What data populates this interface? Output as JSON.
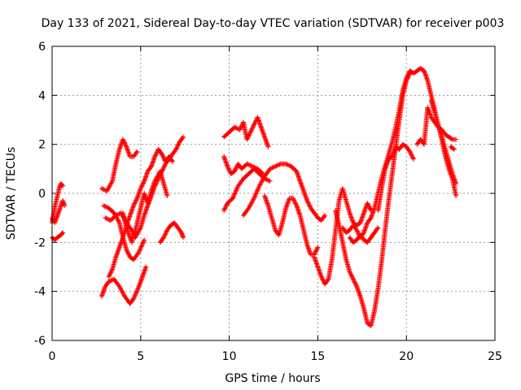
{
  "chart_data": {
    "type": "scatter",
    "title": "Day 133 of 2021, Sidereal Day-to-day VTEC variation (SDTVAR) for receiver p003",
    "xlabel": "GPS time / hours",
    "ylabel": "SDTVAR / TECUs",
    "xlim": [
      0,
      25
    ],
    "ylim": [
      -6,
      6
    ],
    "xticks": [
      0,
      5,
      10,
      15,
      20,
      25
    ],
    "yticks": [
      -6,
      -4,
      -2,
      0,
      2,
      4,
      6
    ],
    "grid": true,
    "marker": "+",
    "marker_color": "#ff0000",
    "series": [
      {
        "name": "s1",
        "points": [
          [
            0.0,
            -1.2
          ],
          [
            0.1,
            -0.8
          ],
          [
            0.2,
            -0.4
          ],
          [
            0.3,
            -0.1
          ],
          [
            0.4,
            0.2
          ],
          [
            0.5,
            0.4
          ],
          [
            0.6,
            0.3
          ]
        ]
      },
      {
        "name": "s2",
        "points": [
          [
            0.0,
            -1.0
          ],
          [
            0.15,
            -1.2
          ],
          [
            0.3,
            -0.9
          ],
          [
            0.45,
            -0.6
          ],
          [
            0.6,
            -0.3
          ],
          [
            0.7,
            -0.5
          ]
        ]
      },
      {
        "name": "s3",
        "points": [
          [
            0.0,
            -1.8
          ],
          [
            0.15,
            -1.9
          ],
          [
            0.3,
            -1.8
          ],
          [
            0.5,
            -1.7
          ],
          [
            0.6,
            -1.6
          ]
        ]
      },
      {
        "name": "s4",
        "points": [
          [
            2.8,
            -4.2
          ],
          [
            3.0,
            -3.8
          ],
          [
            3.2,
            -3.6
          ],
          [
            3.5,
            -3.5
          ],
          [
            3.8,
            -3.8
          ],
          [
            4.1,
            -4.2
          ],
          [
            4.4,
            -4.5
          ],
          [
            4.6,
            -4.3
          ],
          [
            4.9,
            -3.8
          ],
          [
            5.1,
            -3.4
          ],
          [
            5.3,
            -3.0
          ]
        ]
      },
      {
        "name": "s5",
        "points": [
          [
            2.8,
            0.2
          ],
          [
            3.1,
            0.1
          ],
          [
            3.4,
            0.5
          ],
          [
            3.6,
            1.2
          ],
          [
            3.8,
            1.8
          ],
          [
            4.0,
            2.2
          ],
          [
            4.2,
            1.9
          ],
          [
            4.4,
            1.5
          ],
          [
            4.6,
            1.5
          ],
          [
            4.8,
            1.7
          ]
        ]
      },
      {
        "name": "s6",
        "points": [
          [
            2.9,
            -0.5
          ],
          [
            3.2,
            -0.6
          ],
          [
            3.5,
            -0.8
          ],
          [
            3.8,
            -1.2
          ],
          [
            4.0,
            -1.8
          ],
          [
            4.2,
            -2.3
          ],
          [
            4.4,
            -2.6
          ],
          [
            4.6,
            -2.7
          ],
          [
            4.9,
            -2.4
          ],
          [
            5.2,
            -1.9
          ]
        ]
      },
      {
        "name": "s7",
        "points": [
          [
            3.0,
            -1.0
          ],
          [
            3.3,
            -1.1
          ],
          [
            3.6,
            -0.9
          ],
          [
            3.9,
            -0.8
          ],
          [
            4.2,
            -1.2
          ],
          [
            4.5,
            -1.5
          ],
          [
            4.7,
            -1.8
          ],
          [
            5.0,
            -1.4
          ],
          [
            5.2,
            -0.9
          ],
          [
            5.4,
            -0.5
          ],
          [
            5.6,
            -0.1
          ],
          [
            5.8,
            0.3
          ],
          [
            6.0,
            0.6
          ],
          [
            6.2,
            0.9
          ],
          [
            6.4,
            1.2
          ],
          [
            6.6,
            1.4
          ],
          [
            6.8,
            1.6
          ],
          [
            7.0,
            1.8
          ],
          [
            7.2,
            2.1
          ],
          [
            7.4,
            2.3
          ]
        ]
      },
      {
        "name": "s8",
        "points": [
          [
            3.2,
            -3.4
          ],
          [
            3.4,
            -3.1
          ],
          [
            3.6,
            -2.6
          ],
          [
            3.8,
            -2.2
          ],
          [
            4.0,
            -1.8
          ],
          [
            4.2,
            -1.3
          ],
          [
            4.4,
            -0.9
          ],
          [
            4.6,
            -0.5
          ],
          [
            4.8,
            -0.2
          ],
          [
            5.0,
            0.2
          ],
          [
            5.2,
            0.5
          ],
          [
            5.4,
            0.9
          ],
          [
            5.6,
            1.1
          ],
          [
            5.8,
            1.5
          ],
          [
            6.0,
            1.8
          ],
          [
            6.2,
            1.6
          ],
          [
            6.4,
            1.3
          ],
          [
            6.6,
            1.5
          ],
          [
            6.8,
            1.3
          ]
        ]
      },
      {
        "name": "s9",
        "points": [
          [
            4.0,
            -0.8
          ],
          [
            4.2,
            -1.4
          ],
          [
            4.5,
            -2.0
          ],
          [
            4.7,
            -1.5
          ],
          [
            5.0,
            -0.6
          ],
          [
            5.2,
            0.0
          ],
          [
            5.4,
            -0.4
          ],
          [
            5.6,
            0.1
          ],
          [
            5.8,
            0.5
          ],
          [
            6.1,
            0.9
          ],
          [
            6.3,
            0.4
          ],
          [
            6.5,
            -0.1
          ]
        ]
      },
      {
        "name": "s10",
        "points": [
          [
            6.1,
            -2.0
          ],
          [
            6.3,
            -1.8
          ],
          [
            6.5,
            -1.5
          ],
          [
            6.7,
            -1.3
          ],
          [
            6.9,
            -1.2
          ],
          [
            7.1,
            -1.4
          ],
          [
            7.3,
            -1.6
          ],
          [
            7.4,
            -1.8
          ]
        ]
      },
      {
        "name": "s11",
        "points": [
          [
            9.7,
            -0.7
          ],
          [
            9.9,
            -0.4
          ],
          [
            10.2,
            -0.2
          ],
          [
            10.5,
            0.3
          ],
          [
            10.8,
            0.6
          ],
          [
            11.1,
            0.8
          ],
          [
            11.4,
            1.0
          ],
          [
            11.7,
            0.8
          ],
          [
            12.0,
            0.6
          ],
          [
            12.3,
            0.5
          ]
        ]
      },
      {
        "name": "s12",
        "points": [
          [
            9.7,
            2.3
          ],
          [
            10.0,
            2.5
          ],
          [
            10.3,
            2.7
          ],
          [
            10.6,
            2.6
          ],
          [
            10.8,
            2.9
          ],
          [
            11.0,
            2.2
          ],
          [
            11.2,
            2.5
          ],
          [
            11.4,
            2.8
          ],
          [
            11.6,
            3.1
          ],
          [
            11.8,
            2.7
          ],
          [
            12.0,
            2.3
          ],
          [
            12.2,
            1.9
          ]
        ]
      },
      {
        "name": "s13",
        "points": [
          [
            9.7,
            1.5
          ],
          [
            9.9,
            1.1
          ],
          [
            10.1,
            0.8
          ],
          [
            10.3,
            0.9
          ],
          [
            10.5,
            1.2
          ],
          [
            10.7,
            1.0
          ],
          [
            11.0,
            1.2
          ],
          [
            11.3,
            1.1
          ],
          [
            11.6,
            1.0
          ],
          [
            11.9,
            0.8
          ]
        ]
      },
      {
        "name": "s14",
        "points": [
          [
            10.8,
            -0.9
          ],
          [
            11.1,
            -0.6
          ],
          [
            11.4,
            -0.2
          ],
          [
            11.7,
            0.3
          ],
          [
            12.0,
            0.7
          ],
          [
            12.3,
            1.0
          ],
          [
            12.6,
            1.1
          ],
          [
            12.9,
            1.2
          ],
          [
            13.2,
            1.2
          ],
          [
            13.5,
            1.1
          ],
          [
            13.8,
            0.9
          ],
          [
            14.0,
            0.5
          ],
          [
            14.2,
            0.1
          ],
          [
            14.4,
            -0.3
          ],
          [
            14.6,
            -0.6
          ],
          [
            14.8,
            -0.8
          ],
          [
            15.0,
            -1.0
          ],
          [
            15.2,
            -1.1
          ],
          [
            15.4,
            -0.9
          ]
        ]
      },
      {
        "name": "s15",
        "points": [
          [
            12.0,
            -0.1
          ],
          [
            12.2,
            -0.5
          ],
          [
            12.4,
            -1.0
          ],
          [
            12.6,
            -1.5
          ],
          [
            12.8,
            -1.7
          ],
          [
            13.0,
            -1.2
          ],
          [
            13.2,
            -0.6
          ],
          [
            13.4,
            -0.2
          ],
          [
            13.6,
            -0.2
          ],
          [
            13.8,
            -0.5
          ],
          [
            14.0,
            -0.9
          ],
          [
            14.2,
            -1.5
          ],
          [
            14.4,
            -2.1
          ],
          [
            14.6,
            -2.5
          ],
          [
            14.8,
            -2.5
          ],
          [
            15.0,
            -2.2
          ]
        ]
      },
      {
        "name": "s16",
        "points": [
          [
            14.8,
            -2.6
          ],
          [
            15.0,
            -3.0
          ],
          [
            15.2,
            -3.4
          ],
          [
            15.4,
            -3.7
          ],
          [
            15.6,
            -3.5
          ],
          [
            15.8,
            -2.7
          ],
          [
            16.0,
            -1.5
          ],
          [
            16.2,
            -0.3
          ],
          [
            16.4,
            0.2
          ],
          [
            16.6,
            -0.3
          ],
          [
            16.8,
            -0.8
          ],
          [
            17.0,
            -1.2
          ],
          [
            17.2,
            -1.3
          ],
          [
            17.4,
            -1.2
          ],
          [
            17.6,
            -0.8
          ],
          [
            17.8,
            -0.4
          ],
          [
            18.0,
            -0.7
          ]
        ]
      },
      {
        "name": "s17",
        "points": [
          [
            16.0,
            -0.7
          ],
          [
            16.2,
            -1.3
          ],
          [
            16.4,
            -2.0
          ],
          [
            16.6,
            -2.7
          ],
          [
            16.8,
            -3.2
          ],
          [
            17.0,
            -3.5
          ],
          [
            17.2,
            -3.8
          ],
          [
            17.4,
            -4.2
          ],
          [
            17.6,
            -4.7
          ],
          [
            17.8,
            -5.3
          ],
          [
            18.0,
            -5.4
          ],
          [
            18.2,
            -4.8
          ],
          [
            18.4,
            -3.9
          ],
          [
            18.6,
            -2.8
          ],
          [
            18.8,
            -1.5
          ],
          [
            19.0,
            -0.3
          ],
          [
            19.2,
            0.8
          ],
          [
            19.4,
            1.9
          ],
          [
            19.6,
            3.0
          ],
          [
            19.8,
            4.0
          ],
          [
            20.0,
            4.6
          ],
          [
            20.2,
            4.9
          ]
        ]
      },
      {
        "name": "s18",
        "points": [
          [
            16.4,
            -1.4
          ],
          [
            16.6,
            -1.6
          ],
          [
            16.8,
            -1.5
          ],
          [
            17.0,
            -1.3
          ],
          [
            17.2,
            -1.5
          ],
          [
            17.4,
            -1.8
          ],
          [
            17.6,
            -1.6
          ],
          [
            17.8,
            -1.2
          ],
          [
            18.0,
            -1.0
          ],
          [
            18.2,
            -0.6
          ],
          [
            18.4,
            0.0
          ],
          [
            18.6,
            0.6
          ],
          [
            18.8,
            1.1
          ],
          [
            19.0,
            1.6
          ],
          [
            19.2,
            2.1
          ],
          [
            19.4,
            2.7
          ],
          [
            19.6,
            3.4
          ],
          [
            19.8,
            4.2
          ],
          [
            20.0,
            4.7
          ],
          [
            20.2,
            5.0
          ],
          [
            20.4,
            4.9
          ],
          [
            20.6,
            5.0
          ],
          [
            20.8,
            5.1
          ],
          [
            21.0,
            5.0
          ],
          [
            21.2,
            4.6
          ],
          [
            21.4,
            4.0
          ],
          [
            21.6,
            3.4
          ],
          [
            21.8,
            2.8
          ],
          [
            22.0,
            2.2
          ],
          [
            22.2,
            1.5
          ],
          [
            22.4,
            1.0
          ],
          [
            22.6,
            0.6
          ],
          [
            22.8,
            -0.1
          ]
        ]
      },
      {
        "name": "s19",
        "points": [
          [
            16.8,
            -1.8
          ],
          [
            17.0,
            -2.0
          ],
          [
            17.2,
            -1.9
          ],
          [
            17.4,
            -1.7
          ],
          [
            17.6,
            -1.9
          ],
          [
            17.8,
            -2.0
          ],
          [
            18.0,
            -1.8
          ],
          [
            18.2,
            -1.6
          ],
          [
            18.4,
            -1.4
          ]
        ]
      },
      {
        "name": "s20",
        "points": [
          [
            18.4,
            -0.7
          ],
          [
            18.6,
            0.2
          ],
          [
            18.8,
            1.0
          ],
          [
            19.0,
            1.4
          ],
          [
            19.2,
            1.5
          ],
          [
            19.4,
            1.9
          ],
          [
            19.6,
            1.8
          ],
          [
            19.8,
            2.0
          ],
          [
            20.0,
            1.9
          ],
          [
            20.2,
            1.7
          ],
          [
            20.4,
            1.4
          ]
        ]
      },
      {
        "name": "s21",
        "points": [
          [
            20.6,
            2.0
          ],
          [
            20.8,
            2.2
          ],
          [
            21.0,
            2.0
          ],
          [
            21.2,
            3.5
          ],
          [
            21.4,
            3.1
          ],
          [
            21.6,
            2.9
          ],
          [
            21.8,
            2.7
          ],
          [
            22.0,
            2.6
          ],
          [
            22.2,
            2.4
          ],
          [
            22.4,
            2.3
          ],
          [
            22.6,
            2.2
          ],
          [
            22.8,
            2.2
          ]
        ]
      },
      {
        "name": "s22",
        "points": [
          [
            21.4,
            3.8
          ],
          [
            21.6,
            3.3
          ],
          [
            21.8,
            2.8
          ],
          [
            22.0,
            2.3
          ],
          [
            22.2,
            1.8
          ],
          [
            22.4,
            1.3
          ],
          [
            22.6,
            0.8
          ],
          [
            22.8,
            0.4
          ]
        ]
      },
      {
        "name": "s23",
        "points": [
          [
            22.5,
            1.9
          ],
          [
            22.7,
            1.8
          ]
        ]
      }
    ]
  }
}
